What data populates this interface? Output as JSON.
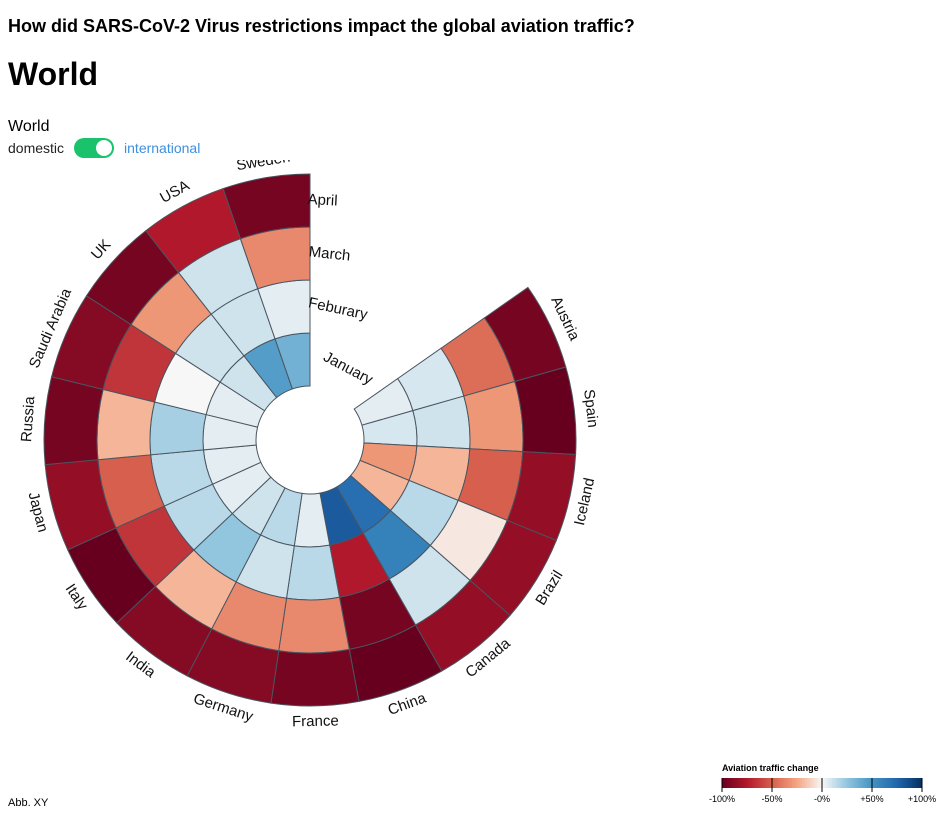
{
  "header": {
    "question": "How did SARS-CoV-2 Virus restrictions impact the global aviation traffic?",
    "title": "World"
  },
  "controls": {
    "scope_label": "World",
    "left_option": "domestic",
    "right_option": "international",
    "toggle_on": true
  },
  "footnote": "Abb. XY",
  "colors": {
    "toggle": "#19c26b",
    "link": "#3d8fe0",
    "cell_stroke": "#4a5560"
  },
  "chart_data": {
    "type": "heatmap",
    "layout": "radial",
    "months": [
      "January",
      "Feburary",
      "March",
      "April"
    ],
    "countries": [
      "Austria",
      "Spain",
      "Iceland",
      "Brazil",
      "Canada",
      "China",
      "France",
      "Germany",
      "India",
      "Italy",
      "Japan",
      "Russia",
      "Saudi Arabia",
      "UK",
      "USA",
      "Sweden"
    ],
    "values": {
      "Austria": [
        5,
        8,
        -45,
        -95
      ],
      "Spain": [
        8,
        10,
        -30,
        -100
      ],
      "Iceland": [
        -30,
        -20,
        -50,
        -85
      ],
      "Brazil": [
        -20,
        15,
        -5,
        -85
      ],
      "Canada": [
        70,
        60,
        10,
        -85
      ],
      "China": [
        80,
        -75,
        -95,
        -100
      ],
      "France": [
        5,
        15,
        -35,
        -95
      ],
      "Germany": [
        15,
        10,
        -35,
        -90
      ],
      "India": [
        10,
        25,
        -20,
        -90
      ],
      "Italy": [
        5,
        15,
        -65,
        -100
      ],
      "Japan": [
        5,
        15,
        -50,
        -85
      ],
      "Russia": [
        5,
        20,
        -20,
        -95
      ],
      "Saudi Arabia": [
        5,
        0,
        -65,
        -90
      ],
      "UK": [
        10,
        10,
        -30,
        -95
      ],
      "USA": [
        45,
        10,
        10,
        -75
      ],
      "Sweden": [
        35,
        5,
        -35,
        -95
      ]
    },
    "color_scale": {
      "title": "Aviation traffic change",
      "domain": [
        -100,
        100
      ],
      "ticks": [
        "-100%",
        "-50%",
        "-0%",
        "+50%",
        "+100%"
      ]
    }
  }
}
